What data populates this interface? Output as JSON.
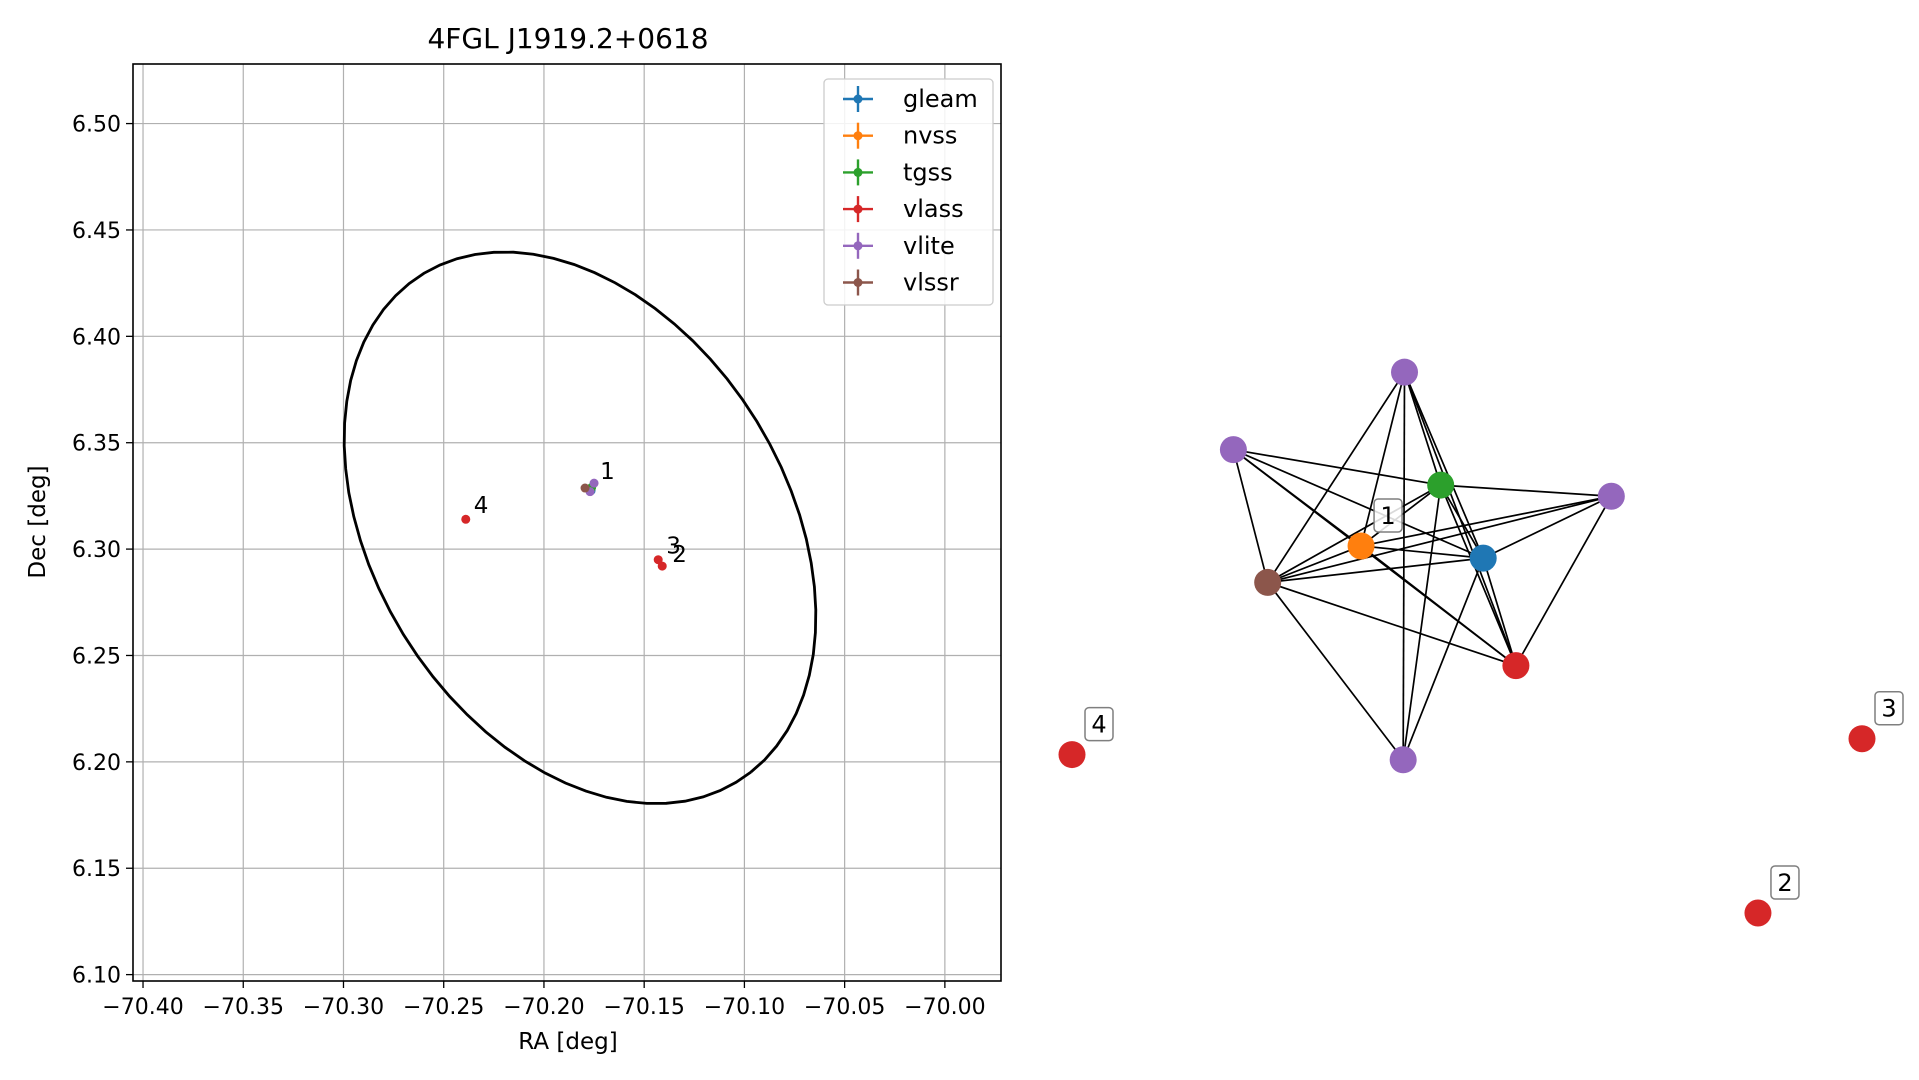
{
  "chart_data": [
    {
      "type": "scatter",
      "title": "4FGL J1919.2+0618",
      "xlabel": "RA [deg]",
      "ylabel": "Dec [deg]",
      "xlim": [
        -70.405,
        -69.972
      ],
      "ylim": [
        6.097,
        6.528
      ],
      "xticks": [
        -70.4,
        -70.35,
        -70.3,
        -70.25,
        -70.2,
        -70.15,
        -70.1,
        -70.05,
        -70.0
      ],
      "xtick_labels": [
        "−70.40",
        "−70.35",
        "−70.30",
        "−70.25",
        "−70.20",
        "−70.15",
        "−70.10",
        "−70.05",
        "−70.00"
      ],
      "yticks": [
        6.1,
        6.15,
        6.2,
        6.25,
        6.3,
        6.35,
        6.4,
        6.45,
        6.5
      ],
      "ytick_labels": [
        "6.10",
        "6.15",
        "6.20",
        "6.25",
        "6.30",
        "6.35",
        "6.40",
        "6.45",
        "6.50"
      ],
      "grid": true,
      "legend_position": "top-right",
      "series": [
        {
          "name": "gleam",
          "color": "#1f77b4",
          "points": [
            {
              "x": -70.1765,
              "y": 6.3275
            }
          ]
        },
        {
          "name": "nvss",
          "color": "#ff7f0e",
          "points": [
            {
              "x": -70.1768,
              "y": 6.328
            }
          ]
        },
        {
          "name": "tgss",
          "color": "#2ca02c",
          "points": [
            {
              "x": -70.1762,
              "y": 6.329
            }
          ]
        },
        {
          "name": "vlass",
          "color": "#d62728",
          "points": [
            {
              "x": -70.239,
              "y": 6.314
            },
            {
              "x": -70.141,
              "y": 6.292
            },
            {
              "x": -70.143,
              "y": 6.295
            }
          ]
        },
        {
          "name": "vlite",
          "color": "#9467bd",
          "points": [
            {
              "x": -70.175,
              "y": 6.331
            },
            {
              "x": -70.177,
              "y": 6.327
            }
          ]
        },
        {
          "name": "vlssr",
          "color": "#8c564b",
          "points": [
            {
              "x": -70.1795,
              "y": 6.3287
            }
          ]
        }
      ],
      "annotations": [
        {
          "text": "1",
          "x": -70.173,
          "y": 6.333
        },
        {
          "text": "4",
          "x": -70.236,
          "y": 6.317
        },
        {
          "text": "3",
          "x": -70.14,
          "y": 6.298
        },
        {
          "text": "2",
          "x": -70.137,
          "y": 6.294
        }
      ],
      "ellipse": {
        "center": [
          -70.182,
          6.31
        ],
        "semi_axis_a": 0.143,
        "semi_axis_b": 0.101,
        "angle_deg": -53.4,
        "color": "#000000"
      }
    },
    {
      "type": "network",
      "nodes": [
        {
          "id": "v-top",
          "color": "#9467bd",
          "rel": [
            0.4209,
            0.2093
          ]
        },
        {
          "id": "v-left",
          "color": "#9467bd",
          "rel": [
            0.2043,
            0.3226
          ]
        },
        {
          "id": "tgss",
          "color": "#2ca02c",
          "rel": [
            0.4667,
            0.3744
          ]
        },
        {
          "id": "v-right",
          "color": "#9467bd",
          "rel": [
            0.6827,
            0.3907
          ]
        },
        {
          "id": "nvss",
          "color": "#ff7f0e",
          "rel": [
            0.3659,
            0.4634
          ],
          "label": "1"
        },
        {
          "id": "gleam",
          "color": "#1f77b4",
          "rel": [
            0.5205,
            0.4812
          ]
        },
        {
          "id": "vlssr",
          "color": "#8c564b",
          "rel": [
            0.2477,
            0.5167
          ]
        },
        {
          "id": "vlass-c",
          "color": "#d62728",
          "rel": [
            0.5619,
            0.6383
          ]
        },
        {
          "id": "v-bottom",
          "color": "#9467bd",
          "rel": [
            0.4192,
            0.776
          ]
        },
        {
          "id": "vlass-4",
          "color": "#d62728",
          "rel": [
            0.0,
            0.7684
          ],
          "label": "4"
        },
        {
          "id": "vlass-3",
          "color": "#d62728",
          "rel": [
            1.0,
            0.7452
          ],
          "label": "3"
        },
        {
          "id": "vlass-2",
          "color": "#d62728",
          "rel": [
            0.8683,
            1.0
          ],
          "label": "2"
        }
      ],
      "edges": [
        [
          "v-top",
          "tgss"
        ],
        [
          "v-top",
          "nvss"
        ],
        [
          "v-top",
          "gleam"
        ],
        [
          "v-top",
          "vlssr"
        ],
        [
          "v-top",
          "vlass-c"
        ],
        [
          "v-top",
          "v-bottom"
        ],
        [
          "v-left",
          "tgss"
        ],
        [
          "v-left",
          "nvss"
        ],
        [
          "v-left",
          "gleam"
        ],
        [
          "v-left",
          "vlssr"
        ],
        [
          "v-left",
          "vlass-c"
        ],
        [
          "tgss",
          "v-right"
        ],
        [
          "tgss",
          "nvss"
        ],
        [
          "tgss",
          "gleam"
        ],
        [
          "tgss",
          "vlssr"
        ],
        [
          "tgss",
          "vlass-c"
        ],
        [
          "tgss",
          "v-bottom"
        ],
        [
          "v-right",
          "nvss"
        ],
        [
          "v-right",
          "gleam"
        ],
        [
          "v-right",
          "vlssr"
        ],
        [
          "v-right",
          "vlass-c"
        ],
        [
          "nvss",
          "gleam"
        ],
        [
          "nvss",
          "vlssr"
        ],
        [
          "nvss",
          "vlass-c"
        ],
        [
          "gleam",
          "vlssr"
        ],
        [
          "gleam",
          "vlass-c"
        ],
        [
          "gleam",
          "v-bottom"
        ],
        [
          "vlssr",
          "vlass-c"
        ],
        [
          "vlssr",
          "v-bottom"
        ]
      ]
    }
  ]
}
